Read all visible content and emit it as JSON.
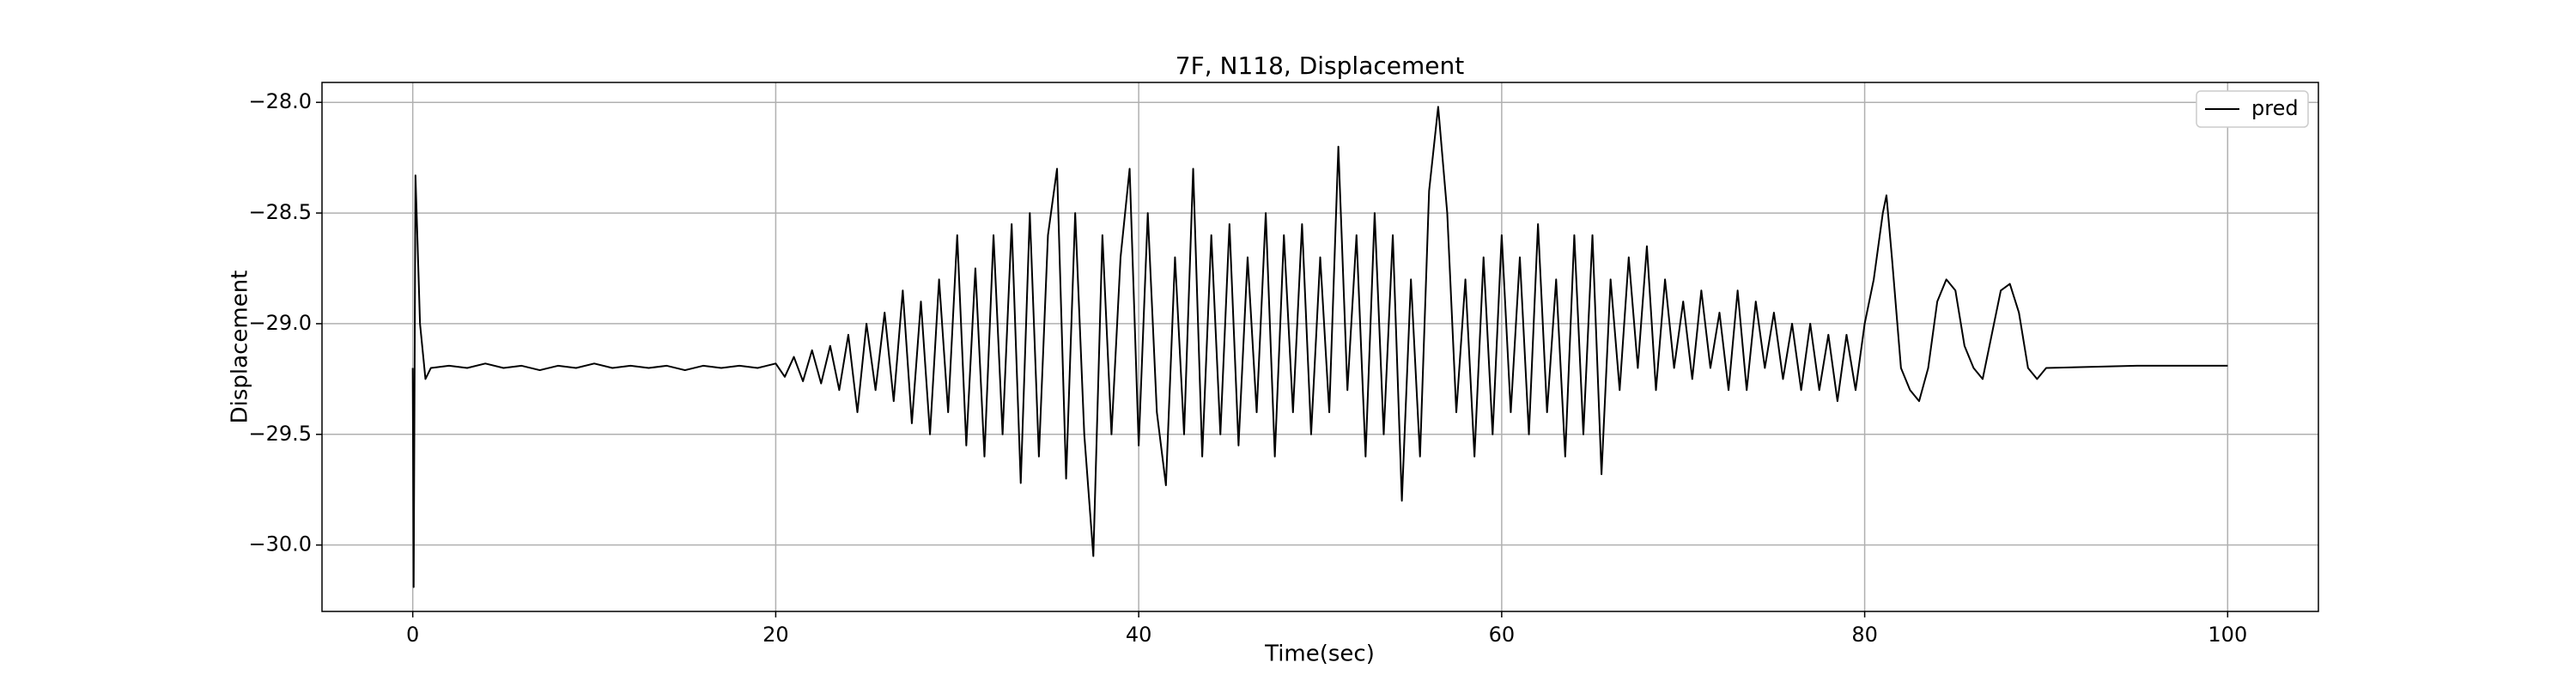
{
  "chart_data": {
    "type": "line",
    "title": "7F, N118, Displacement",
    "x_label": "Time(sec)",
    "y_label": "Displacement",
    "x": [
      0,
      0.05,
      0.15,
      0.4,
      0.7,
      1,
      2,
      3,
      4,
      5,
      6,
      7,
      8,
      9,
      10,
      11,
      12,
      13,
      14,
      15,
      16,
      17,
      18,
      19,
      20,
      20.5,
      21,
      21.5,
      22,
      22.5,
      23,
      23.5,
      24,
      24.5,
      25,
      25.5,
      26,
      26.5,
      27,
      27.5,
      28,
      28.5,
      29,
      29.5,
      30,
      30.5,
      31,
      31.5,
      32,
      32.5,
      33,
      33.5,
      34,
      34.5,
      35,
      35.5,
      36,
      36.5,
      37,
      37.5,
      38,
      38.5,
      39,
      39.5,
      40,
      40.5,
      41,
      41.5,
      42,
      42.5,
      43,
      43.5,
      44,
      44.5,
      45,
      45.5,
      46,
      46.5,
      47,
      47.5,
      48,
      48.5,
      49,
      49.5,
      50,
      50.5,
      51,
      51.5,
      52,
      52.5,
      53,
      53.5,
      54,
      54.5,
      55,
      55.5,
      56,
      56.5,
      57,
      57.5,
      58,
      58.5,
      59,
      59.5,
      60,
      60.5,
      61,
      61.5,
      62,
      62.5,
      63,
      63.5,
      64,
      64.5,
      65,
      65.5,
      66,
      66.5,
      67,
      67.5,
      68,
      68.5,
      69,
      69.5,
      70,
      70.5,
      71,
      71.5,
      72,
      72.5,
      73,
      73.5,
      74,
      74.5,
      75,
      75.5,
      76,
      76.5,
      77,
      77.5,
      78,
      78.5,
      79,
      79.5,
      80,
      80.5,
      81,
      81.2,
      81.5,
      82,
      82.5,
      83,
      83.5,
      84,
      84.5,
      85,
      85.5,
      86,
      86.5,
      87,
      87.5,
      88,
      88.5,
      89,
      89.5,
      90,
      95,
      100
    ],
    "series": [
      {
        "name": "pred",
        "color": "#000000",
        "values": [
          -29.2,
          -30.19,
          -28.33,
          -29.0,
          -29.25,
          -29.2,
          -29.19,
          -29.2,
          -29.18,
          -29.2,
          -29.19,
          -29.21,
          -29.19,
          -29.2,
          -29.18,
          -29.2,
          -29.19,
          -29.2,
          -29.19,
          -29.21,
          -29.19,
          -29.2,
          -29.19,
          -29.2,
          -29.18,
          -29.24,
          -29.15,
          -29.26,
          -29.12,
          -29.27,
          -29.1,
          -29.3,
          -29.05,
          -29.4,
          -29.0,
          -29.3,
          -28.95,
          -29.35,
          -28.85,
          -29.45,
          -28.9,
          -29.5,
          -28.8,
          -29.4,
          -28.6,
          -29.55,
          -28.75,
          -29.6,
          -28.6,
          -29.5,
          -28.55,
          -29.72,
          -28.5,
          -29.6,
          -28.6,
          -28.3,
          -29.7,
          -28.5,
          -29.5,
          -30.05,
          -28.6,
          -29.5,
          -28.7,
          -28.3,
          -29.55,
          -28.5,
          -29.4,
          -29.73,
          -28.7,
          -29.5,
          -28.3,
          -29.6,
          -28.6,
          -29.5,
          -28.55,
          -29.55,
          -28.7,
          -29.4,
          -28.5,
          -29.6,
          -28.6,
          -29.4,
          -28.55,
          -29.5,
          -28.7,
          -29.4,
          -28.2,
          -29.3,
          -28.6,
          -29.6,
          -28.5,
          -29.5,
          -28.6,
          -29.8,
          -28.8,
          -29.6,
          -28.4,
          -28.02,
          -28.5,
          -29.4,
          -28.8,
          -29.6,
          -28.7,
          -29.5,
          -28.6,
          -29.4,
          -28.7,
          -29.5,
          -28.55,
          -29.4,
          -28.8,
          -29.6,
          -28.6,
          -29.5,
          -28.6,
          -29.68,
          -28.8,
          -29.3,
          -28.7,
          -29.2,
          -28.65,
          -29.3,
          -28.8,
          -29.2,
          -28.9,
          -29.25,
          -28.85,
          -29.2,
          -28.95,
          -29.3,
          -28.85,
          -29.3,
          -28.9,
          -29.2,
          -28.95,
          -29.25,
          -29.0,
          -29.3,
          -29.0,
          -29.3,
          -29.05,
          -29.35,
          -29.05,
          -29.3,
          -29.0,
          -28.8,
          -28.5,
          -28.42,
          -28.7,
          -29.2,
          -29.3,
          -29.35,
          -29.2,
          -28.9,
          -28.8,
          -28.85,
          -29.1,
          -29.2,
          -29.25,
          -29.05,
          -28.85,
          -28.82,
          -28.95,
          -29.2,
          -29.25,
          -29.2,
          -29.19,
          -29.19
        ]
      }
    ],
    "xlim": [
      -5,
      105
    ],
    "ylim": [
      -30.3,
      -27.91
    ],
    "xticks": [
      0,
      20,
      40,
      60,
      80,
      100
    ],
    "yticks": [
      {
        "value": -30.0,
        "label": "−30.0"
      },
      {
        "value": -29.5,
        "label": "−29.5"
      },
      {
        "value": -29.0,
        "label": "−29.0"
      },
      {
        "value": -28.5,
        "label": "−28.5"
      },
      {
        "value": -28.0,
        "label": "−28.0"
      }
    ],
    "grid": true,
    "legend": "upper right"
  }
}
